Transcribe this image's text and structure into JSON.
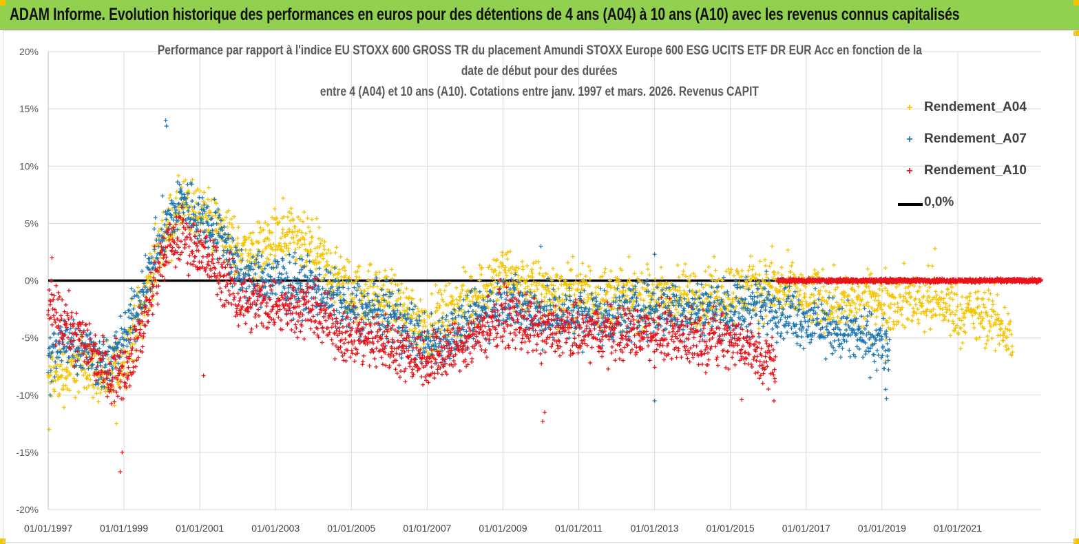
{
  "banner": {
    "title": "ADAM Informe. Evolution historique des performances en euros pour des détentions de 4 ans (A04) à 10 ans (A10) avec les revenus connus capitalisés",
    "background": "#92d050"
  },
  "chart_data": {
    "type": "scatter",
    "title_lines": [
      "Performance par rapport à l'indice EU STOXX 600 GROSS TR  du placement Amundi STOXX Europe 600 ESG UCITS ETF DR EUR Acc en fonction de la",
      "date de début pour des durées",
      "entre 4 (A04) et 10 ans (A10). Cotations entre janv. 1997 et mars. 2026. Revenus CAPIT"
    ],
    "x_ticks": [
      "01/01/1997",
      "01/01/1999",
      "01/01/2001",
      "01/01/2003",
      "01/01/2005",
      "01/01/2007",
      "01/01/2009",
      "01/01/2011",
      "01/01/2013",
      "01/01/2015",
      "01/01/2017",
      "01/01/2019",
      "01/01/2021"
    ],
    "x_range_years": [
      1997.0,
      2023.2
    ],
    "y_ticks": [
      "20%",
      "15%",
      "10%",
      "5%",
      "0%",
      "-5%",
      "-10%",
      "-15%",
      "-20%"
    ],
    "y_range_percent": [
      -20,
      20
    ],
    "marker": "+",
    "series": [
      {
        "name": "Rendement_A04",
        "color": "#f5c400",
        "x_end": 2022.45,
        "spread": 1.3,
        "trend": [
          [
            1997.0,
            -8.5
          ],
          [
            1997.5,
            -8.0
          ],
          [
            1998.0,
            -7.0
          ],
          [
            1998.6,
            -9.0
          ],
          [
            1999.0,
            -6.5
          ],
          [
            1999.5,
            -2.0
          ],
          [
            2000.0,
            3.5
          ],
          [
            2000.5,
            6.5
          ],
          [
            2001.0,
            6.0
          ],
          [
            2001.6,
            4.5
          ],
          [
            2002.0,
            2.5
          ],
          [
            2002.5,
            2.5
          ],
          [
            2003.0,
            3.5
          ],
          [
            2003.5,
            3.5
          ],
          [
            2004.0,
            2.5
          ],
          [
            2004.5,
            0.5
          ],
          [
            2005.0,
            -1.0
          ],
          [
            2006.0,
            -1.5
          ],
          [
            2007.0,
            -4.0
          ],
          [
            2008.0,
            -2.0
          ],
          [
            2009.0,
            0.5
          ],
          [
            2010.0,
            -1.0
          ],
          [
            2011.0,
            -1.0
          ],
          [
            2012.0,
            -1.5
          ],
          [
            2013.0,
            -1.5
          ],
          [
            2014.0,
            -1.5
          ],
          [
            2015.0,
            -1.0
          ],
          [
            2016.0,
            -0.5
          ],
          [
            2017.0,
            -1.5
          ],
          [
            2018.0,
            -2.0
          ],
          [
            2019.0,
            -2.0
          ],
          [
            2020.0,
            -1.5
          ],
          [
            2021.0,
            -2.5
          ],
          [
            2022.0,
            -3.5
          ],
          [
            2022.45,
            -5.0
          ]
        ],
        "outliers": [
          [
            1997.02,
            -13.0
          ],
          [
            1998.8,
            -12.5
          ],
          [
            2016.1,
            3.0
          ],
          [
            2020.4,
            2.8
          ],
          [
            2003.2,
            7.2
          ],
          [
            2019.1,
            -7.0
          ]
        ]
      },
      {
        "name": "Rendement_A07",
        "color": "#1f77b4",
        "x_end": 2019.2,
        "spread": 1.2,
        "trend": [
          [
            1997.0,
            -7.0
          ],
          [
            1997.5,
            -5.0
          ],
          [
            1998.0,
            -6.0
          ],
          [
            1998.6,
            -7.5
          ],
          [
            1999.0,
            -5.0
          ],
          [
            1999.5,
            -1.0
          ],
          [
            2000.0,
            4.0
          ],
          [
            2000.5,
            7.0
          ],
          [
            2001.0,
            5.5
          ],
          [
            2001.6,
            4.0
          ],
          [
            2002.0,
            0.5
          ],
          [
            2002.5,
            0.0
          ],
          [
            2003.0,
            0.0
          ],
          [
            2004.0,
            -0.5
          ],
          [
            2004.5,
            -1.5
          ],
          [
            2005.0,
            -2.5
          ],
          [
            2006.0,
            -3.0
          ],
          [
            2007.0,
            -5.5
          ],
          [
            2008.0,
            -4.0
          ],
          [
            2009.0,
            -1.5
          ],
          [
            2010.0,
            -3.0
          ],
          [
            2011.0,
            -3.0
          ],
          [
            2012.0,
            -3.0
          ],
          [
            2013.0,
            -2.5
          ],
          [
            2014.0,
            -2.5
          ],
          [
            2015.0,
            -2.5
          ],
          [
            2016.0,
            -2.0
          ],
          [
            2017.0,
            -3.5
          ],
          [
            2018.0,
            -4.5
          ],
          [
            2019.0,
            -5.5
          ],
          [
            2019.2,
            -6.5
          ]
        ],
        "outliers": [
          [
            2000.1,
            14.0
          ],
          [
            2000.12,
            13.5
          ],
          [
            2010.0,
            3.0
          ],
          [
            2013.0,
            2.3
          ],
          [
            2013.0,
            -10.5
          ],
          [
            2019.1,
            -9.5
          ],
          [
            2019.12,
            -10.3
          ],
          [
            1997.05,
            -10.0
          ]
        ]
      },
      {
        "name": "Rendement_A10",
        "color": "#e8141b",
        "x_end": 2016.2,
        "spread": 1.2,
        "trend": [
          [
            1997.0,
            -2.5
          ],
          [
            1997.5,
            -4.0
          ],
          [
            1998.0,
            -5.5
          ],
          [
            1998.6,
            -8.0
          ],
          [
            1999.0,
            -8.0
          ],
          [
            1999.5,
            -4.0
          ],
          [
            2000.0,
            2.0
          ],
          [
            2000.5,
            4.0
          ],
          [
            2001.0,
            2.5
          ],
          [
            2001.6,
            0.5
          ],
          [
            2002.0,
            -1.5
          ],
          [
            2002.5,
            -2.0
          ],
          [
            2003.0,
            -2.0
          ],
          [
            2004.0,
            -2.5
          ],
          [
            2004.5,
            -4.0
          ],
          [
            2005.0,
            -5.0
          ],
          [
            2006.0,
            -5.5
          ],
          [
            2007.0,
            -7.0
          ],
          [
            2008.0,
            -5.5
          ],
          [
            2009.0,
            -3.0
          ],
          [
            2010.0,
            -4.5
          ],
          [
            2011.0,
            -4.5
          ],
          [
            2012.0,
            -4.5
          ],
          [
            2013.0,
            -4.5
          ],
          [
            2014.0,
            -5.0
          ],
          [
            2015.0,
            -5.0
          ],
          [
            2015.7,
            -6.5
          ],
          [
            2016.2,
            -7.5
          ]
        ],
        "outliers": [
          [
            1998.9,
            -16.7
          ],
          [
            1998.95,
            -15.0
          ],
          [
            2010.05,
            -12.3
          ],
          [
            2010.1,
            -11.5
          ],
          [
            2015.3,
            -10.4
          ],
          [
            2016.15,
            -10.5
          ],
          [
            1997.1,
            2.0
          ],
          [
            2001.1,
            -8.3
          ]
        ]
      },
      {
        "name": "Rendement_A10 (0% plateau)",
        "color": "#e8141b",
        "x_start": 2016.25,
        "x_end": 2023.2,
        "level": 0.0,
        "spread": 0.08
      }
    ],
    "reference_line": {
      "name": "0,0%",
      "value": 0.0,
      "color": "#000000",
      "x_start": 1997.0,
      "x_end": 2016.25
    },
    "legend": [
      {
        "label": "Rendement_A04",
        "color": "#f5c400",
        "kind": "marker"
      },
      {
        "label": "Rendement_A07",
        "color": "#1f77b4",
        "kind": "marker"
      },
      {
        "label": "Rendement_A10",
        "color": "#e8141b",
        "kind": "marker"
      },
      {
        "label": "0,0%",
        "color": "#000000",
        "kind": "line"
      }
    ],
    "legend_position": "top-right",
    "grid": true
  }
}
